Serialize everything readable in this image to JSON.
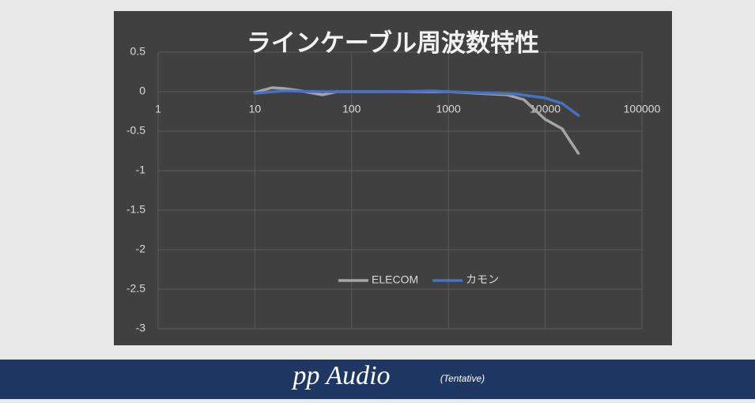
{
  "chart_data": {
    "type": "line",
    "title": "ラインケーブル周波数特性",
    "xscale": "log",
    "xlim": [
      1,
      100000
    ],
    "xticks": [
      1,
      10,
      100,
      1000,
      10000,
      100000
    ],
    "ylim": [
      -3,
      0.5
    ],
    "yticks": [
      0.5,
      0,
      -0.5,
      -1,
      -1.5,
      -2,
      -2.5,
      -3
    ],
    "grid": true,
    "legend": "bottom",
    "series": [
      {
        "name": "ELECOM",
        "color": "#a5a5a5",
        "x": [
          10,
          15,
          20,
          30,
          50,
          70,
          100,
          200,
          500,
          1000,
          2000,
          4000,
          6000,
          10000,
          15000,
          18000,
          22000
        ],
        "values": [
          -0.01,
          0.05,
          0.04,
          0.01,
          -0.04,
          0,
          0,
          0,
          0,
          0,
          -0.02,
          -0.04,
          -0.1,
          -0.35,
          -0.47,
          -0.62,
          -0.78
        ]
      },
      {
        "name": "カモン",
        "color": "#4472c4",
        "x": [
          10,
          20,
          50,
          100,
          300,
          700,
          1000,
          3000,
          5000,
          10000,
          15000,
          22000
        ],
        "values": [
          -0.02,
          0.01,
          0,
          0,
          0,
          0.01,
          0,
          -0.02,
          -0.03,
          -0.08,
          -0.15,
          -0.3
        ]
      }
    ]
  },
  "footer": {
    "brand": "pp Audio",
    "note": "(Tentative)"
  }
}
